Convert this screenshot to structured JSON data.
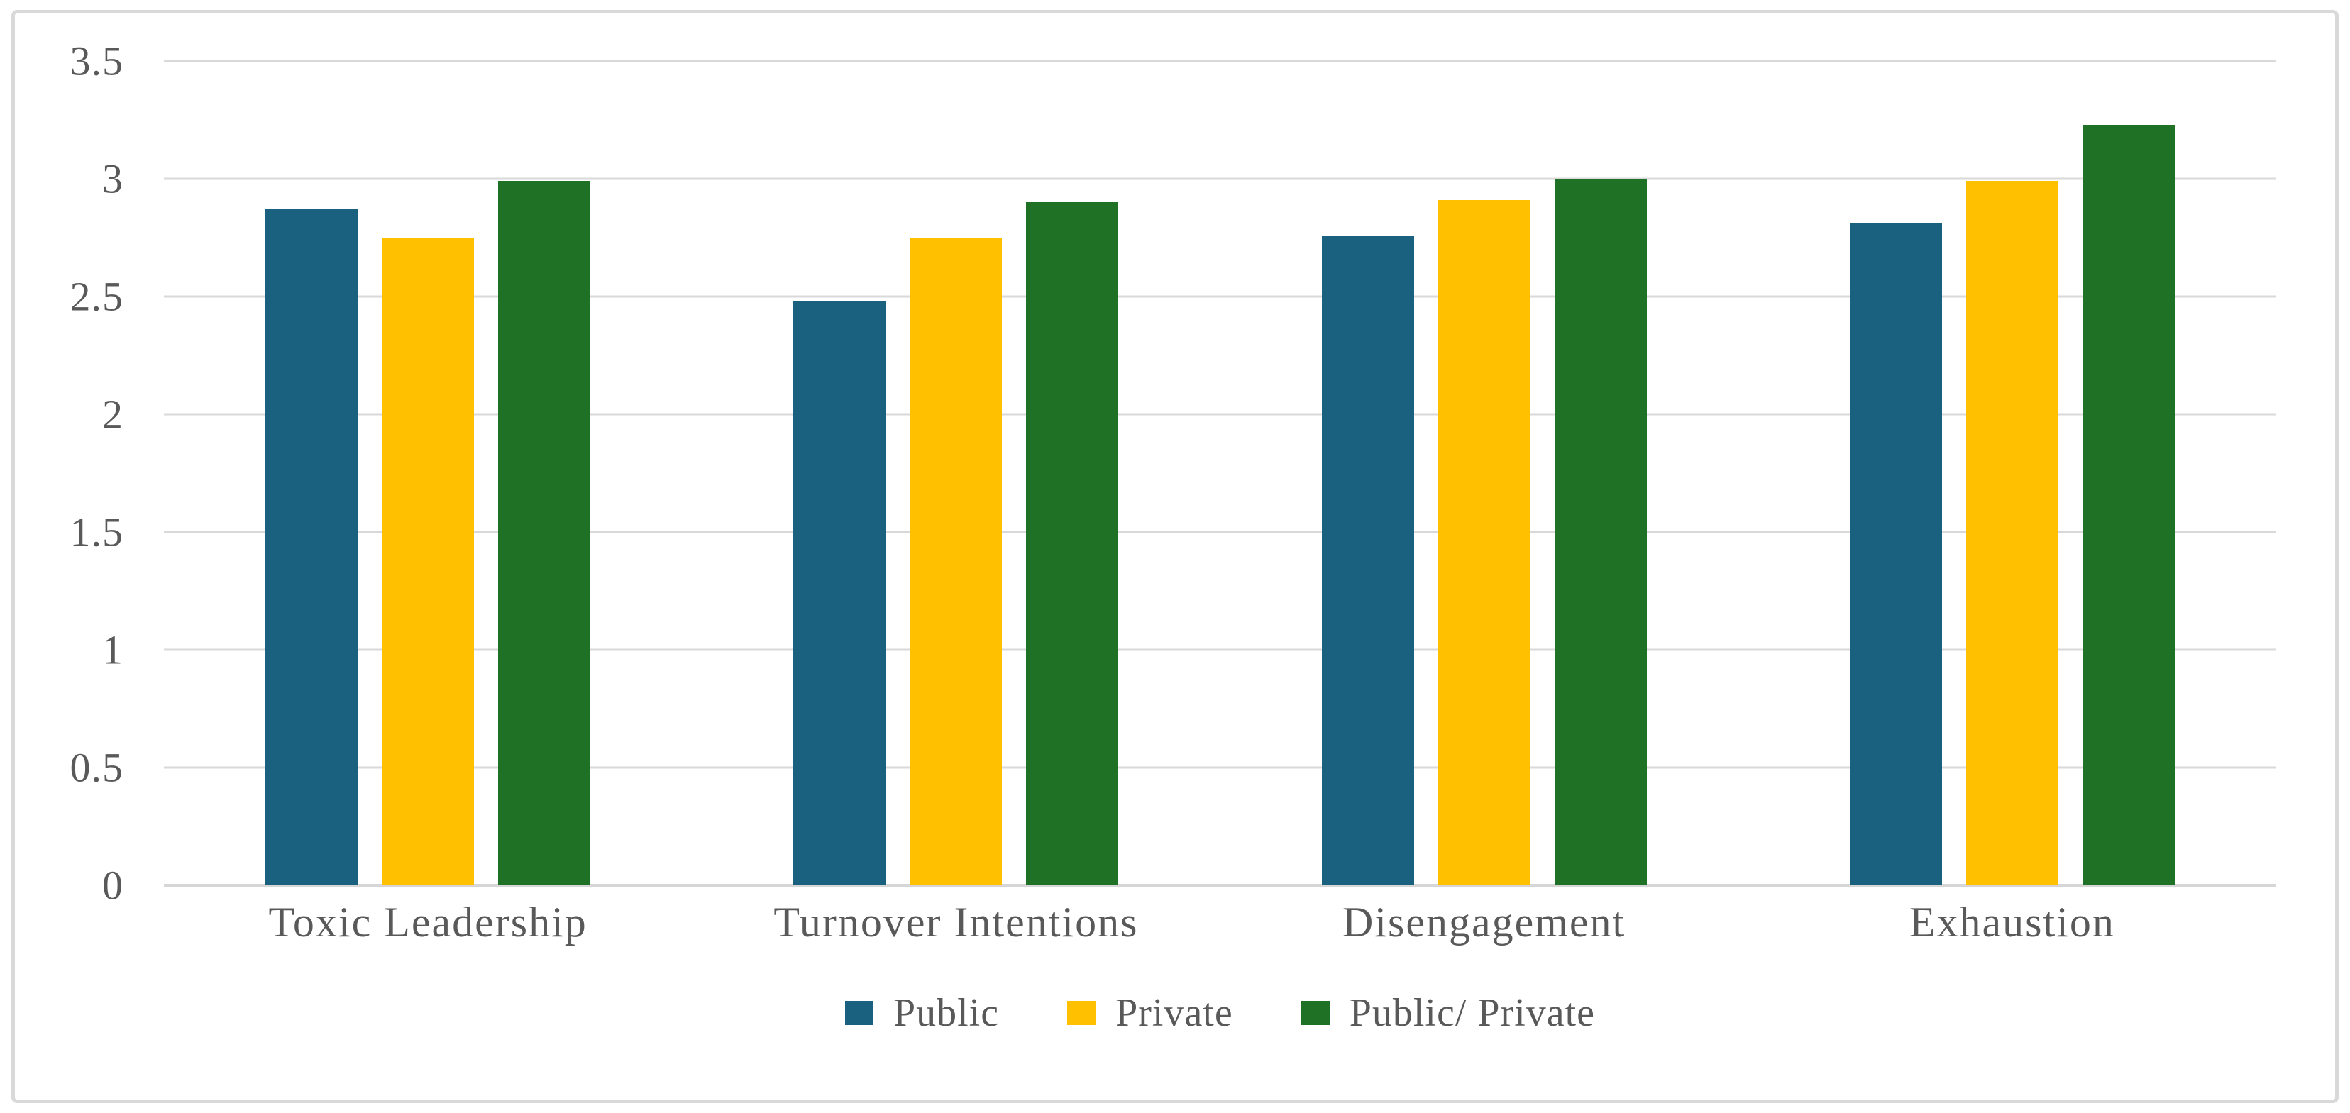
{
  "chart_data": {
    "type": "bar",
    "title": "",
    "categories": [
      "Toxic Leadership",
      "Turnover Intentions",
      "Disengagement",
      "Exhaustion"
    ],
    "series": [
      {
        "name": "Public",
        "color": "#1A607F",
        "values": [
          2.87,
          2.48,
          2.76,
          2.81
        ]
      },
      {
        "name": "Private",
        "color": "#FFC000",
        "values": [
          2.75,
          2.75,
          2.91,
          2.99
        ]
      },
      {
        "name": "Public/ Private",
        "color": "#1E7125",
        "values": [
          2.99,
          2.9,
          3.0,
          3.23
        ]
      }
    ],
    "xlabel": "",
    "ylabel": "",
    "ylim": [
      0,
      3.5
    ],
    "ytick_step": 0.5,
    "ytick_labels": [
      "0",
      "0.5",
      "1",
      "1.5",
      "2",
      "2.5",
      "3",
      "3.5"
    ],
    "grid": true,
    "legend_position": "bottom"
  },
  "colors": {
    "text": "#595959",
    "gridline": "#D9D9D9",
    "frame_border": "#D9D9D9",
    "background": "#FFFFFF"
  }
}
